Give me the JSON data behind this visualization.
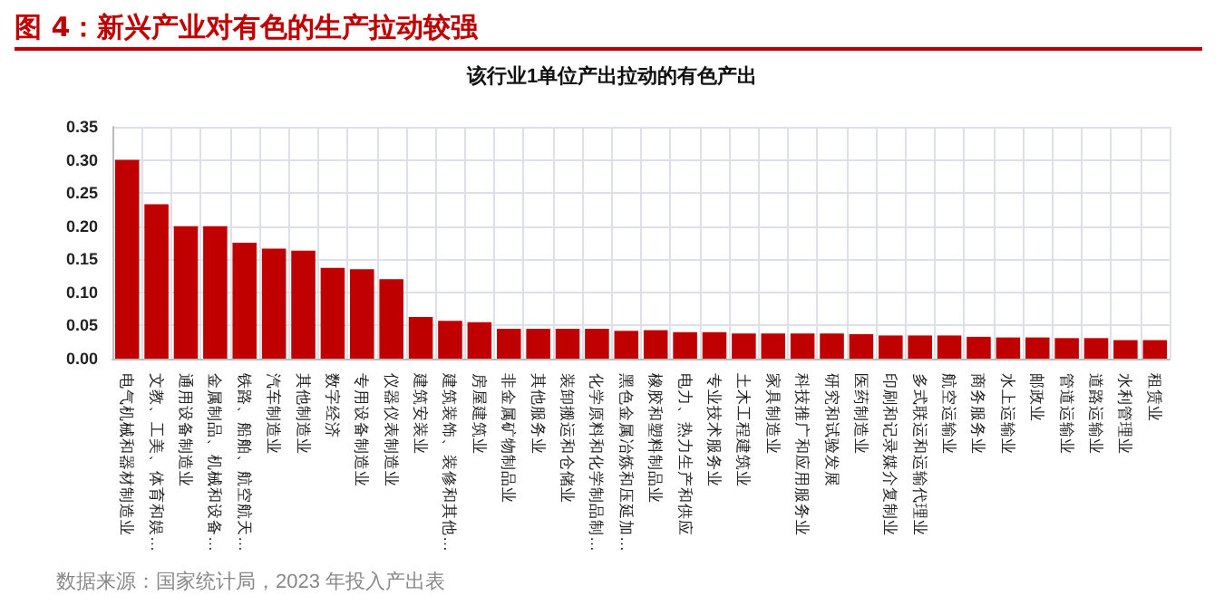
{
  "chart_data": {
    "type": "bar",
    "title": "图 4：新兴产业对有色的生产拉动较强",
    "subtitle": "该行业1单位产出拉动的有色产出",
    "categories": [
      "电气机械和器材制造业",
      "文教、工美、体育和娱…",
      "通用设备制造业",
      "金属制品、机械和设备…",
      "铁路、船舶、航空航天…",
      "汽车制造业",
      "其他制造业",
      "数字经济",
      "专用设备制造业",
      "仪器仪表制造业",
      "建筑安装业",
      "建筑装饰、装修和其他…",
      "房屋建筑业",
      "非金属矿物制品业",
      "其他服务业",
      "装卸搬运和仓储业",
      "化学原料和化学制品制…",
      "黑色金属冶炼和压延加…",
      "橡胶和塑料制品业",
      "电力、热力生产和供应",
      "专业技术服务业",
      "土木工程建筑业",
      "家具制造业",
      "科技推广和应用服务业",
      "研究和试验发展",
      "医药制造业",
      "印刷和记录媒介复制业",
      "多式联运和运输代理业",
      "航空运输业",
      "商务服务业",
      "水上运输业",
      "邮政业",
      "管道运输业",
      "道路运输业",
      "水利管理业",
      "租赁业"
    ],
    "values": [
      0.3,
      0.233,
      0.2,
      0.2,
      0.175,
      0.166,
      0.163,
      0.137,
      0.135,
      0.12,
      0.063,
      0.057,
      0.055,
      0.045,
      0.045,
      0.045,
      0.045,
      0.042,
      0.043,
      0.04,
      0.04,
      0.038,
      0.038,
      0.038,
      0.038,
      0.037,
      0.035,
      0.035,
      0.035,
      0.033,
      0.032,
      0.032,
      0.031,
      0.031,
      0.028,
      0.028
    ],
    "color": "#c00000",
    "ylim": [
      0,
      0.35
    ],
    "yticks": [
      {
        "value": 0,
        "label": "0.00"
      },
      {
        "value": 0.05,
        "label": "0.05"
      },
      {
        "value": 0.1,
        "label": "0.10"
      },
      {
        "value": 0.15,
        "label": "0.15"
      },
      {
        "value": 0.2,
        "label": "0.20"
      },
      {
        "value": 0.25,
        "label": "0.25"
      },
      {
        "value": 0.3,
        "label": "0.30"
      },
      {
        "value": 0.35,
        "label": "0.35"
      }
    ],
    "grid": true,
    "annotations": [
      "数据来源：国家统计局，2023 年投入产出表"
    ]
  }
}
